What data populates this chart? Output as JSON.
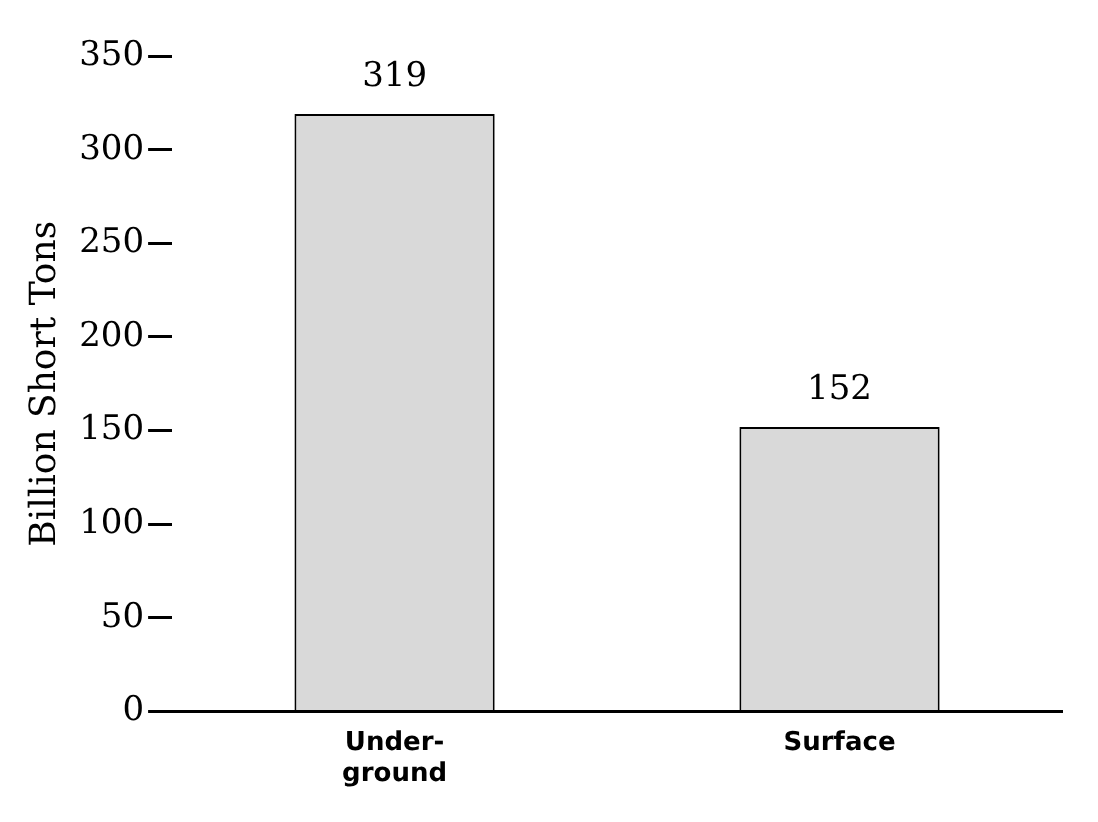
{
  "chart_data": {
    "type": "bar",
    "ylabel": "Billion Short Tons",
    "categories": [
      "Under-\nground",
      "Surface"
    ],
    "values": [
      319,
      152
    ],
    "color": "#d9d9d9",
    "ylim": [
      0,
      350
    ],
    "yticks": [
      0,
      50,
      100,
      150,
      200,
      250,
      300,
      350
    ],
    "data_labels": true,
    "grid": false,
    "legend": false
  }
}
